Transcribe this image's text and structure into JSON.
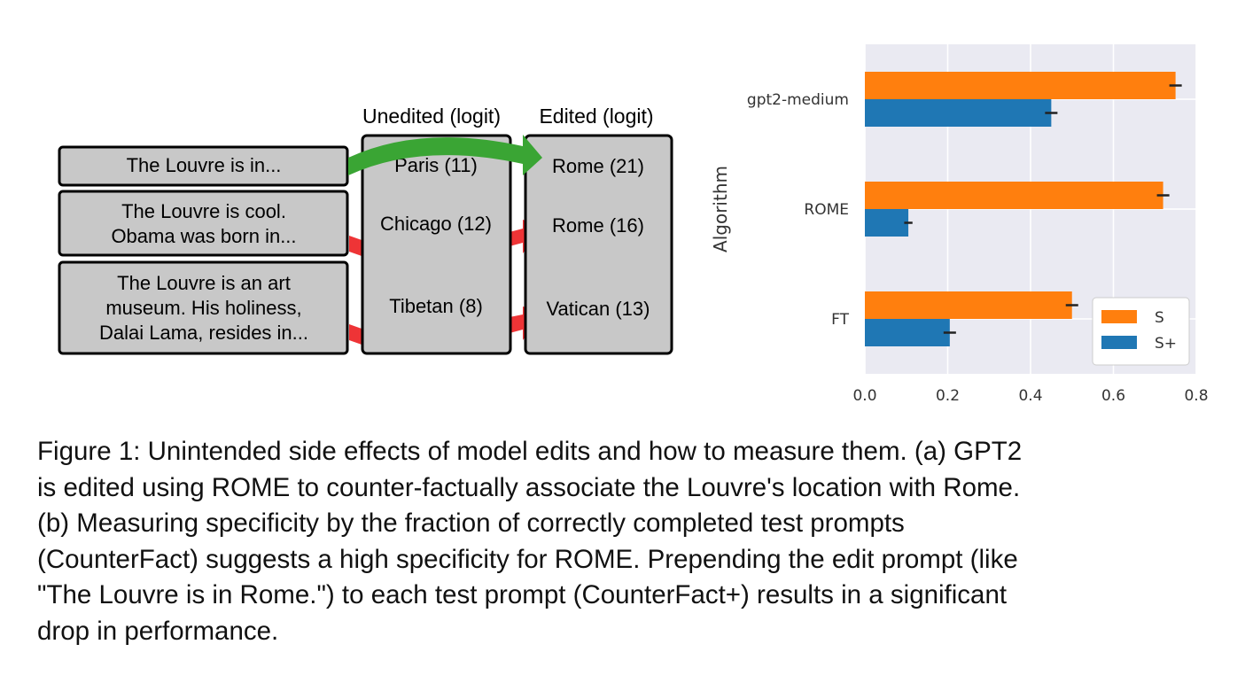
{
  "diagram": {
    "col_headers": {
      "unedited": "Unedited (logit)",
      "edited": "Edited (logit)"
    },
    "prompts": [
      {
        "lines": [
          "The Louvre is in..."
        ]
      },
      {
        "lines": [
          "The Louvre is cool.",
          "Obama was born in..."
        ]
      },
      {
        "lines": [
          "The Louvre is an art",
          "museum. His holiness,",
          "Dalai Lama, resides in..."
        ]
      }
    ],
    "unedited_values": [
      "Paris (11)",
      "Chicago (12)",
      "Tibetan (8)"
    ],
    "edited_values": [
      "Rome (21)",
      "Rome (16)",
      "Vatican (13)"
    ],
    "colors": {
      "box": "#c8c8c8",
      "green_arrow": "#3aa534",
      "red_arrow": "#ee3436"
    }
  },
  "chart_data": {
    "type": "bar",
    "orientation": "horizontal",
    "categories": [
      "gpt2-medium",
      "ROME",
      "FT"
    ],
    "series": [
      {
        "name": "S",
        "values": [
          0.75,
          0.72,
          0.5
        ],
        "errors": [
          0.015,
          0.015,
          0.015
        ],
        "color": "#ff7f0e"
      },
      {
        "name": "S+",
        "values": [
          0.45,
          0.105,
          0.205
        ],
        "errors": [
          0.015,
          0.01,
          0.015
        ],
        "color": "#1f77b4"
      }
    ],
    "xlabel": "",
    "ylabel": "Algorithm",
    "xlim": [
      0,
      0.8
    ],
    "xticks": [
      "0.0",
      "0.2",
      "0.4",
      "0.6",
      "0.8"
    ],
    "grid": true,
    "legend": "bottom-right"
  },
  "caption": {
    "lines": [
      "Figure 1: Unintended side effects of model edits and how to measure them. (a) GPT2",
      "is edited using ROME to counter-factually associate the Louvre's location with Rome.",
      "(b) Measuring specificity by the fraction of correctly completed test prompts",
      "(CounterFact) suggests a high specificity for ROME. Prepending the edit prompt (like",
      "\"The Louvre is in Rome.\") to each test prompt (CounterFact+) results in a significant",
      "drop in performance."
    ]
  }
}
